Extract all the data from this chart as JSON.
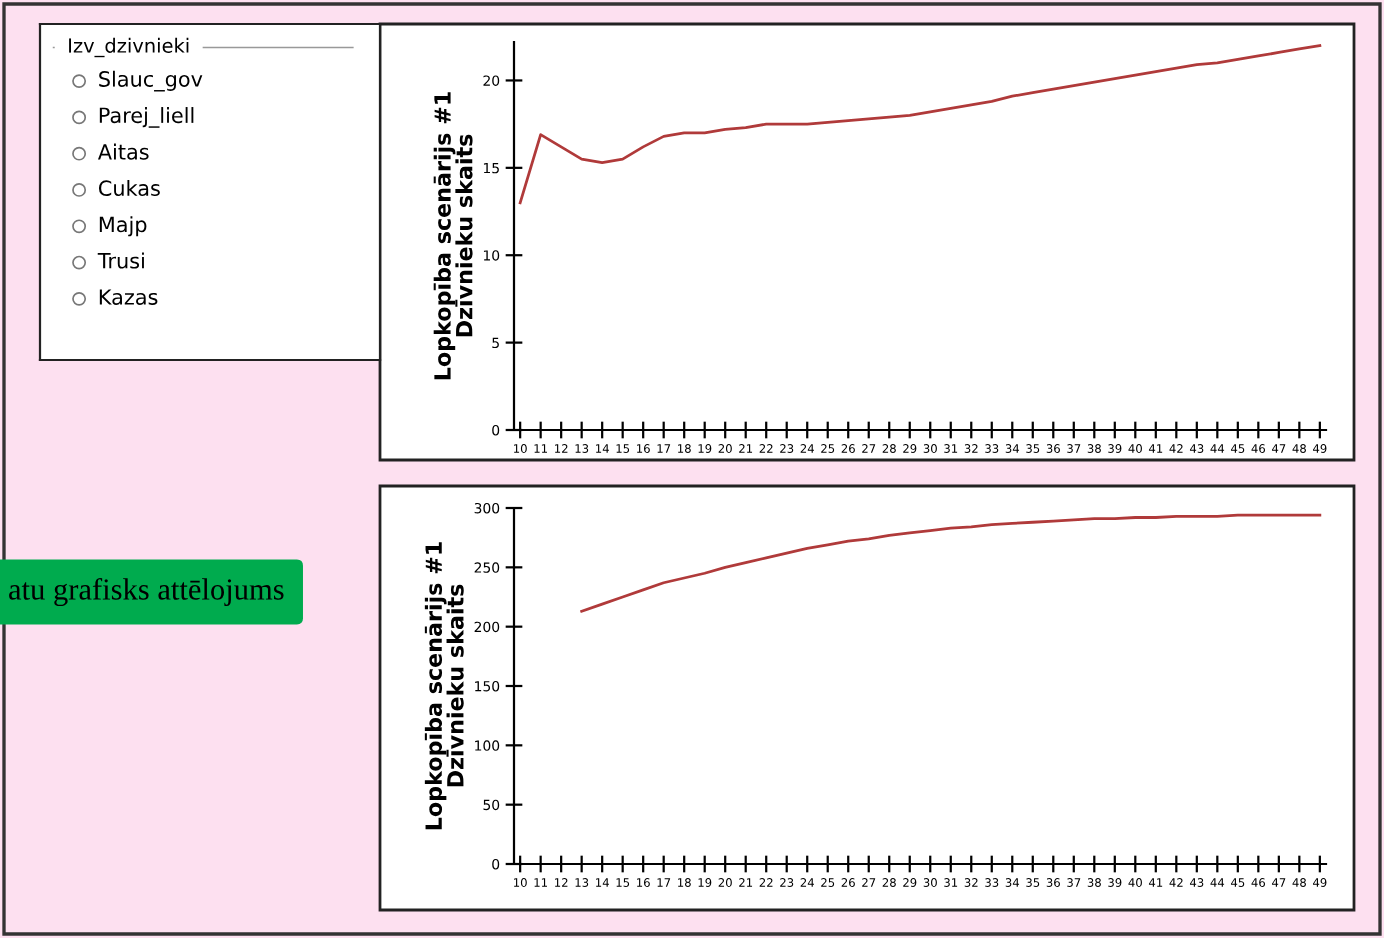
{
  "chart_data": [
    {
      "type": "other",
      "title": "Izv_dzivnieki",
      "annotations": [
        "Slauc_gov",
        "Parej_liell",
        "Aitas",
        "Cukas",
        "Majp",
        "Trusi",
        "Kazas"
      ]
    },
    {
      "type": "line",
      "ylabel": "Lopkopība scenārijs #1\nDzīvnieku skaits",
      "categories": [
        "10",
        "11",
        "12",
        "13",
        "14",
        "15",
        "16",
        "17",
        "18",
        "19",
        "20",
        "21",
        "22",
        "23",
        "24",
        "25",
        "26",
        "27",
        "28",
        "29",
        "30",
        "31",
        "32",
        "33",
        "34",
        "35",
        "36",
        "37",
        "38",
        "39",
        "40",
        "41",
        "42",
        "43",
        "44",
        "45",
        "46",
        "47",
        "48",
        "49"
      ],
      "series": [
        {
          "color": "#b03a3a",
          "values": [
            13,
            16.9,
            16.2,
            15.5,
            15.3,
            15.5,
            16.2,
            16.8,
            17.0,
            17.0,
            17.2,
            17.3,
            17.5,
            17.5,
            17.5,
            17.6,
            17.7,
            17.8,
            17.9,
            18.0,
            18.2,
            18.4,
            18.6,
            18.8,
            19.1,
            19.3,
            19.5,
            19.7,
            19.9,
            20.1,
            20.3,
            20.5,
            20.7,
            20.9,
            21.0,
            21.2,
            21.4,
            21.6,
            21.8,
            22.0
          ]
        }
      ],
      "ylim": [
        0,
        22.2
      ],
      "yticks": [
        0,
        5,
        10,
        15,
        20
      ],
      "grid": false,
      "marker": "none"
    },
    {
      "type": "line",
      "ylabel": "Lopkopība scenārijs #1\nDzīvnieku skaits",
      "categories": [
        "10",
        "11",
        "12",
        "13",
        "14",
        "15",
        "16",
        "17",
        "18",
        "19",
        "20",
        "21",
        "22",
        "23",
        "24",
        "25",
        "26",
        "27",
        "28",
        "29",
        "30",
        "31",
        "32",
        "33",
        "34",
        "35",
        "36",
        "37",
        "38",
        "39",
        "40",
        "41",
        "42",
        "43",
        "44",
        "45",
        "46",
        "47",
        "48",
        "49"
      ],
      "series": [
        {
          "color": "#b03a3a",
          "values": [
            null,
            null,
            null,
            213,
            219,
            225,
            231,
            237,
            241,
            245,
            250,
            254,
            258,
            262,
            266,
            269,
            272,
            274,
            277,
            279,
            281,
            283,
            284,
            286,
            287,
            288,
            289,
            290,
            291,
            291,
            292,
            292,
            293,
            293,
            293,
            294,
            294,
            294,
            294,
            294
          ]
        }
      ],
      "ylim": [
        0,
        300
      ],
      "yticks": [
        0,
        50,
        100,
        150,
        200,
        250,
        300
      ],
      "grid": false,
      "marker": "none",
      "annotations": [
        "atu grafisks attēlojums"
      ]
    }
  ]
}
